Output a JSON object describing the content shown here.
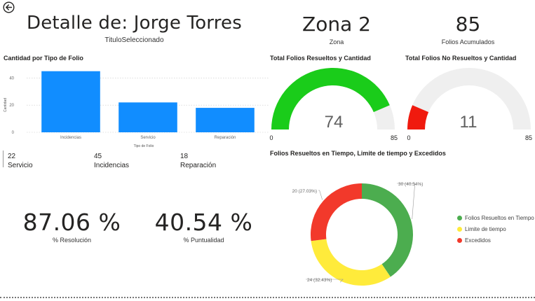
{
  "header": {
    "title": "Detalle de: Jorge Torres",
    "subtitle": "TituloSeleccionado"
  },
  "cards": {
    "zona": {
      "value": "Zona 2",
      "label": "Zona"
    },
    "folios": {
      "value": "85",
      "label": "Folios Acumulados"
    }
  },
  "bar_section": {
    "title": "Cantidad por Tipo de Folio",
    "ylabel": "Cantidad",
    "xlabel": "Tipo de Folio",
    "ticks": [
      "40",
      "20",
      "0"
    ],
    "colors": {
      "bar": "#118dff"
    }
  },
  "mini_stats": [
    {
      "value": "22",
      "label": "Servicio"
    },
    {
      "value": "45",
      "label": "Incidencias"
    },
    {
      "value": "18",
      "label": "Reparación"
    }
  ],
  "kpis": {
    "resolucion": {
      "value": "87.06 %",
      "label": "% Resolución"
    },
    "puntualidad": {
      "value": "40.54 %",
      "label": "% Puntualidad"
    }
  },
  "gauges": {
    "resueltos": {
      "title": "Total Folios Resueltos y Cantidad",
      "value": "74",
      "min": "0",
      "max": "85",
      "fraction": 0.8706,
      "color": "#1acc1a"
    },
    "no_resueltos": {
      "title": "Total Folios No Resueltos y Cantidad",
      "value": "11",
      "min": "0",
      "max": "85",
      "fraction": 0.1294,
      "color": "#f01a0e"
    },
    "track_color": "#efefef"
  },
  "donut": {
    "title": "Folios Resueltos en Tiempo, Limite de tiempo y Excedidos"
  },
  "chart_data": [
    {
      "type": "bar",
      "categories": [
        "Incidencias",
        "Servicio",
        "Reparación"
      ],
      "values": [
        45,
        22,
        18
      ],
      "title": "Cantidad por Tipo de Folio",
      "xlabel": "Tipo de Folio",
      "ylabel": "Cantidad",
      "ylim": [
        0,
        50
      ],
      "grid": true
    },
    {
      "type": "pie",
      "categories": [
        "Folios Resueltos en Tiempo",
        "Limite de tiempo",
        "Excedidos"
      ],
      "values": [
        30,
        24,
        20
      ],
      "labels": [
        "30 (40.54%)",
        "24 (32.43%)",
        "20 (27.03%)"
      ],
      "colors": [
        "#4cad4f",
        "#ffeb3b",
        "#f2392b"
      ],
      "legend": "right"
    }
  ]
}
